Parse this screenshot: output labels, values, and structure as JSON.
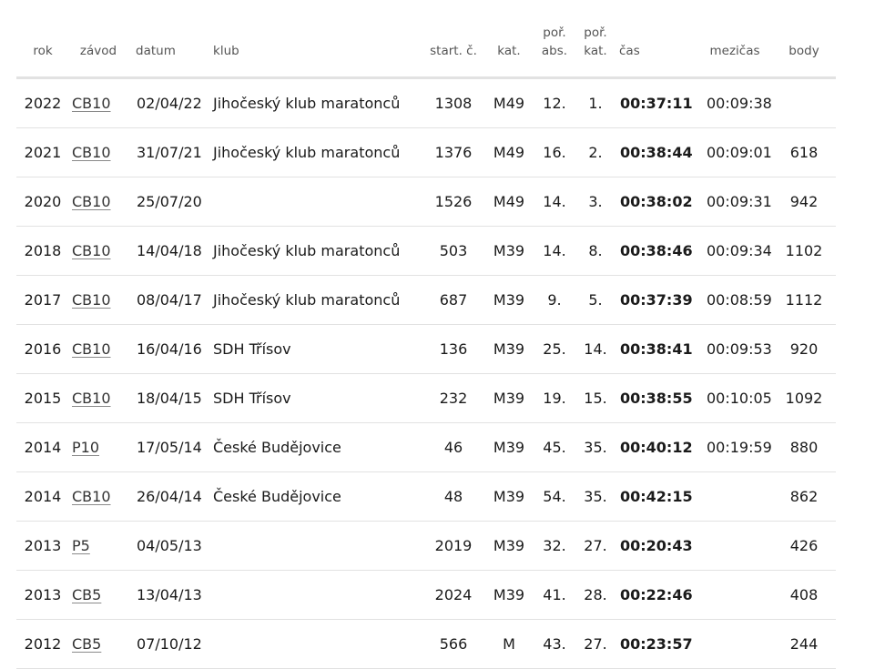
{
  "table": {
    "headers": {
      "year": "rok",
      "race": "závod",
      "date": "datum",
      "club": "klub",
      "start_no": "start. č.",
      "category": "kat.",
      "rank_abs_1": "poř.",
      "rank_abs_2": "abs.",
      "rank_cat_1": "poř.",
      "rank_cat_2": "kat.",
      "time": "čas",
      "split": "mezičas",
      "points": "body"
    },
    "rows": [
      {
        "year": "2022",
        "race": "CB10",
        "date": "02/04/22",
        "club": "Jihočeský klub maratonců",
        "start_no": "1308",
        "category": "M49",
        "rank_abs": "12.",
        "rank_cat": "1.",
        "time": "00:37:11",
        "split": "00:09:38",
        "points": ""
      },
      {
        "year": "2021",
        "race": "CB10",
        "date": "31/07/21",
        "club": "Jihočeský klub maratonců",
        "start_no": "1376",
        "category": "M49",
        "rank_abs": "16.",
        "rank_cat": "2.",
        "time": "00:38:44",
        "split": "00:09:01",
        "points": "618"
      },
      {
        "year": "2020",
        "race": "CB10",
        "date": "25/07/20",
        "club": "",
        "start_no": "1526",
        "category": "M49",
        "rank_abs": "14.",
        "rank_cat": "3.",
        "time": "00:38:02",
        "split": "00:09:31",
        "points": "942"
      },
      {
        "year": "2018",
        "race": "CB10",
        "date": "14/04/18",
        "club": "Jihočeský klub maratonců",
        "start_no": "503",
        "category": "M39",
        "rank_abs": "14.",
        "rank_cat": "8.",
        "time": "00:38:46",
        "split": "00:09:34",
        "points": "1102"
      },
      {
        "year": "2017",
        "race": "CB10",
        "date": "08/04/17",
        "club": "Jihočeský klub maratonců",
        "start_no": "687",
        "category": "M39",
        "rank_abs": "9.",
        "rank_cat": "5.",
        "time": "00:37:39",
        "split": "00:08:59",
        "points": "1112"
      },
      {
        "year": "2016",
        "race": "CB10",
        "date": "16/04/16",
        "club": "SDH Třísov",
        "start_no": "136",
        "category": "M39",
        "rank_abs": "25.",
        "rank_cat": "14.",
        "time": "00:38:41",
        "split": "00:09:53",
        "points": "920"
      },
      {
        "year": "2015",
        "race": "CB10",
        "date": "18/04/15",
        "club": "SDH Třísov",
        "start_no": "232",
        "category": "M39",
        "rank_abs": "19.",
        "rank_cat": "15.",
        "time": "00:38:55",
        "split": "00:10:05",
        "points": "1092"
      },
      {
        "year": "2014",
        "race": "P10",
        "date": "17/05/14",
        "club": "České Budějovice",
        "start_no": "46",
        "category": "M39",
        "rank_abs": "45.",
        "rank_cat": "35.",
        "time": "00:40:12",
        "split": "00:19:59",
        "points": "880"
      },
      {
        "year": "2014",
        "race": "CB10",
        "date": "26/04/14",
        "club": "České Budějovice",
        "start_no": "48",
        "category": "M39",
        "rank_abs": "54.",
        "rank_cat": "35.",
        "time": "00:42:15",
        "split": "",
        "points": "862"
      },
      {
        "year": "2013",
        "race": "P5",
        "date": "04/05/13",
        "club": "",
        "start_no": "2019",
        "category": "M39",
        "rank_abs": "32.",
        "rank_cat": "27.",
        "time": "00:20:43",
        "split": "",
        "points": "426"
      },
      {
        "year": "2013",
        "race": "CB5",
        "date": "13/04/13",
        "club": "",
        "start_no": "2024",
        "category": "M39",
        "rank_abs": "41.",
        "rank_cat": "28.",
        "time": "00:22:46",
        "split": "",
        "points": "408"
      },
      {
        "year": "2012",
        "race": "CB5",
        "date": "07/10/12",
        "club": "",
        "start_no": "566",
        "category": "M",
        "rank_abs": "43.",
        "rank_cat": "27.",
        "time": "00:23:57",
        "split": "",
        "points": "244"
      }
    ]
  }
}
